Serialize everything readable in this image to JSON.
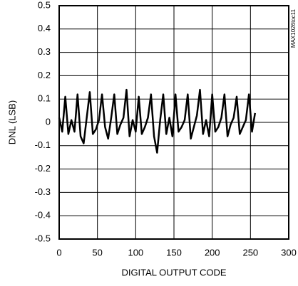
{
  "chart_data": {
    "type": "line",
    "xlabel": "DIGITAL OUTPUT CODE",
    "ylabel": "DNL (LSB)",
    "annotation": "MAX1026toc11",
    "x": [
      0,
      4,
      8,
      12,
      16,
      20,
      24,
      28,
      32,
      36,
      40,
      44,
      48,
      52,
      56,
      60,
      64,
      68,
      72,
      76,
      80,
      84,
      88,
      92,
      96,
      100,
      104,
      108,
      112,
      116,
      120,
      124,
      128,
      132,
      136,
      140,
      144,
      148,
      152,
      156,
      160,
      164,
      168,
      172,
      176,
      180,
      184,
      188,
      192,
      196,
      200,
      204,
      208,
      212,
      216,
      220,
      224,
      228,
      232,
      236,
      240,
      244,
      248,
      252,
      256
    ],
    "series": [
      {
        "color": "#000000",
        "values": [
          0.02,
          -0.04,
          0.11,
          -0.05,
          0.01,
          -0.04,
          0.12,
          -0.06,
          -0.09,
          0.02,
          0.13,
          -0.05,
          -0.03,
          0.01,
          0.12,
          -0.02,
          -0.07,
          0.02,
          0.12,
          -0.05,
          -0.01,
          0.02,
          0.14,
          -0.06,
          0.01,
          -0.04,
          0.11,
          -0.05,
          -0.02,
          0.02,
          0.12,
          -0.06,
          -0.13,
          0.01,
          0.12,
          -0.05,
          0.02,
          -0.06,
          0.12,
          -0.04,
          -0.02,
          0.01,
          0.12,
          -0.07,
          -0.02,
          0.03,
          0.14,
          -0.05,
          0.01,
          -0.06,
          0.12,
          -0.04,
          -0.02,
          0.02,
          0.12,
          -0.06,
          -0.01,
          0.02,
          0.11,
          -0.05,
          -0.02,
          0.01,
          0.12,
          -0.04,
          0.04
        ]
      }
    ],
    "xlim": [
      0,
      300
    ],
    "xticks": [
      0,
      50,
      100,
      150,
      200,
      250,
      300
    ],
    "ylim": [
      -0.5,
      0.5
    ],
    "yticks": [
      -0.5,
      -0.4,
      -0.3,
      -0.2,
      -0.1,
      0,
      0.1,
      0.2,
      0.3,
      0.4,
      0.5
    ],
    "grid": true
  }
}
